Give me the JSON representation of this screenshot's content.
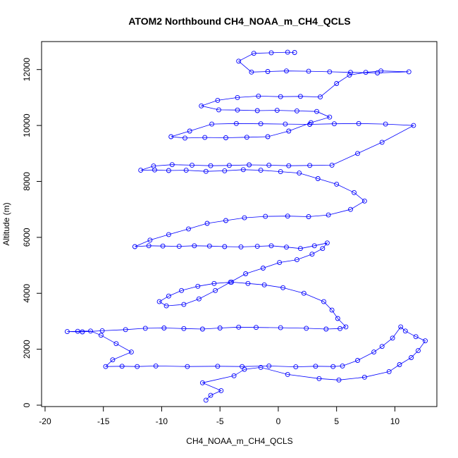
{
  "chart_data": {
    "type": "scatter",
    "title": "ATOM2 Northbound CH4_NOAA_m_CH4_QCLS",
    "xlabel": "CH4_NOAA_m_CH4_QCLS",
    "ylabel": "Altitude (m)",
    "xlim": [
      -20.3,
      13.6
    ],
    "ylim": [
      -50,
      13000
    ],
    "xticks": [
      -20,
      -15,
      -10,
      -5,
      0,
      5,
      10
    ],
    "yticks": [
      0,
      2000,
      4000,
      6000,
      8000,
      10000,
      12000
    ],
    "grid": false,
    "legend": "none",
    "style": "points connected by lines",
    "color": "#0000ff",
    "series": [
      {
        "x": [
          -6.2,
          -5.8,
          -4.9,
          -6.5,
          -3.8,
          -2.9,
          -1.5,
          0.8,
          3.5,
          5.2,
          7.4,
          9.5,
          10.4,
          11.4,
          12.0,
          12.6,
          11.8,
          10.9,
          10.5,
          9.8,
          8.9,
          8.2,
          6.8,
          5.5,
          4.7,
          3.2,
          1.5,
          -0.8,
          -3.1,
          -5.2,
          -7.8,
          -10.5,
          -12.1,
          -13.4,
          -14.8,
          -14.2,
          -12.6,
          -13.9,
          -15.2,
          -16.1,
          -17.2,
          -18.1,
          -16.8,
          -15.1,
          -13.1,
          -11.4,
          -9.8,
          -8.1,
          -6.5,
          -5.0,
          -3.4,
          -1.9,
          0.2,
          2.4,
          4.1,
          5.3,
          5.8,
          5.1,
          4.6,
          3.9,
          2.2,
          0.4,
          -1.2,
          -2.6,
          -4.0,
          -5.5,
          -6.9,
          -8.3,
          -9.4,
          -10.2,
          -9.6,
          -8.1,
          -6.8,
          -5.4,
          -4.1,
          -2.8,
          -1.3,
          0.1,
          1.6,
          2.9,
          3.8,
          4.2,
          3.1,
          1.9,
          0.7,
          -0.6,
          -1.8,
          -3.2,
          -4.6,
          -5.9,
          -7.2,
          -8.5,
          -9.9,
          -11.1,
          -12.3,
          -11.0,
          -9.4,
          -7.7,
          -6.1,
          -4.5,
          -2.9,
          -1.1,
          0.8,
          2.6,
          4.3,
          6.2,
          7.4,
          6.5,
          5.0,
          3.4,
          1.8,
          0.2,
          -1.5,
          -3.0,
          -4.6,
          -6.2,
          -7.9,
          -9.4,
          -10.6,
          -11.8,
          -10.7,
          -9.1,
          -7.4,
          -5.8,
          -4.2,
          -2.5,
          -0.8,
          0.9,
          2.7,
          4.6,
          6.8,
          8.9,
          11.6,
          9.2,
          6.9,
          4.8,
          2.7,
          0.6,
          -1.5,
          -3.6,
          -5.7,
          -7.6,
          -9.2,
          -8.0,
          -6.3,
          -4.5,
          -2.7,
          -0.9,
          0.9,
          2.8,
          4.4,
          3.3,
          1.6,
          -0.1,
          -1.8,
          -3.5,
          -5.1,
          -6.6,
          -5.2,
          -3.5,
          -1.7,
          0.2,
          1.9,
          3.6,
          5.0,
          6.1,
          7.5,
          8.8,
          11.2,
          8.5,
          6.2,
          4.4,
          2.6,
          0.7,
          -0.9,
          -2.3,
          -3.4,
          -2.1,
          -0.6,
          0.8,
          1.4
        ],
        "y": [
          180,
          350,
          520,
          800,
          1050,
          1280,
          1350,
          1100,
          950,
          900,
          1000,
          1200,
          1450,
          1700,
          1950,
          2300,
          2450,
          2650,
          2800,
          2400,
          2100,
          1900,
          1600,
          1400,
          1380,
          1390,
          1370,
          1400,
          1380,
          1390,
          1380,
          1400,
          1380,
          1390,
          1380,
          1620,
          1900,
          2200,
          2500,
          2650,
          2640,
          2630,
          2620,
          2660,
          2700,
          2750,
          2760,
          2740,
          2720,
          2760,
          2790,
          2780,
          2770,
          2750,
          2720,
          2740,
          2800,
          3100,
          3400,
          3700,
          4000,
          4200,
          4300,
          4350,
          4400,
          4350,
          4250,
          4100,
          3900,
          3700,
          3550,
          3600,
          3800,
          4100,
          4400,
          4700,
          4900,
          5100,
          5200,
          5400,
          5600,
          5800,
          5700,
          5600,
          5650,
          5700,
          5680,
          5660,
          5670,
          5690,
          5700,
          5680,
          5690,
          5700,
          5670,
          5900,
          6100,
          6300,
          6500,
          6600,
          6700,
          6750,
          6760,
          6740,
          6800,
          7000,
          7300,
          7600,
          7900,
          8100,
          8300,
          8350,
          8400,
          8420,
          8380,
          8360,
          8400,
          8390,
          8410,
          8400,
          8550,
          8600,
          8580,
          8560,
          8570,
          8590,
          8580,
          8560,
          8570,
          8580,
          9000,
          9400,
          10000,
          10050,
          10070,
          10060,
          10040,
          10050,
          10060,
          10070,
          10050,
          9800,
          9600,
          9550,
          9570,
          9560,
          9580,
          9600,
          9800,
          10100,
          10300,
          10500,
          10520,
          10540,
          10530,
          10550,
          10560,
          10700,
          10900,
          11000,
          11050,
          11030,
          11040,
          11020,
          11500,
          11800,
          11900,
          11950,
          11920,
          11880,
          11900,
          11920,
          11940,
          11950,
          11930,
          11910,
          12300,
          12580,
          12600,
          12620,
          12610
        ]
      }
    ],
    "annotations": []
  }
}
